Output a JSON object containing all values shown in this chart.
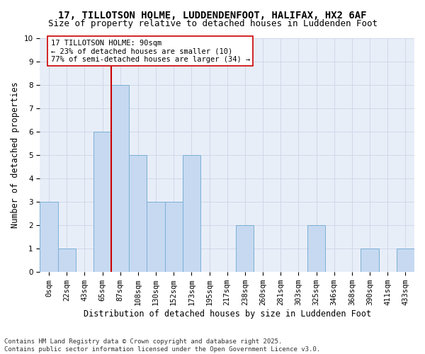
{
  "title_line1": "17, TILLOTSON HOLME, LUDDENDENFOOT, HALIFAX, HX2 6AF",
  "title_line2": "Size of property relative to detached houses in Luddenden Foot",
  "xlabel": "Distribution of detached houses by size in Luddenden Foot",
  "ylabel": "Number of detached properties",
  "bin_labels": [
    "0sqm",
    "22sqm",
    "43sqm",
    "65sqm",
    "87sqm",
    "108sqm",
    "130sqm",
    "152sqm",
    "173sqm",
    "195sqm",
    "217sqm",
    "238sqm",
    "260sqm",
    "281sqm",
    "303sqm",
    "325sqm",
    "346sqm",
    "368sqm",
    "390sqm",
    "411sqm",
    "433sqm"
  ],
  "bar_values": [
    3,
    1,
    0,
    6,
    8,
    5,
    3,
    3,
    5,
    0,
    0,
    2,
    0,
    0,
    0,
    2,
    0,
    0,
    1,
    0,
    1
  ],
  "bar_color": "#c6d9f1",
  "bar_edge_color": "#7bafd4",
  "vline_index": 4,
  "vline_color": "#cc0000",
  "annotation_text": "17 TILLOTSON HOLME: 90sqm\n← 23% of detached houses are smaller (10)\n77% of semi-detached houses are larger (34) →",
  "annotation_box_color": "#ffffff",
  "annotation_box_edge": "#cc0000",
  "ylim": [
    0,
    10
  ],
  "yticks": [
    0,
    1,
    2,
    3,
    4,
    5,
    6,
    7,
    8,
    9,
    10
  ],
  "grid_color": "#d0d8e8",
  "background_color": "#e8eef8",
  "footer_text": "Contains HM Land Registry data © Crown copyright and database right 2025.\nContains public sector information licensed under the Open Government Licence v3.0.",
  "title_fontsize": 10,
  "subtitle_fontsize": 9,
  "axis_label_fontsize": 8.5,
  "tick_fontsize": 7.5,
  "annotation_fontsize": 7.5,
  "footer_fontsize": 6.5
}
